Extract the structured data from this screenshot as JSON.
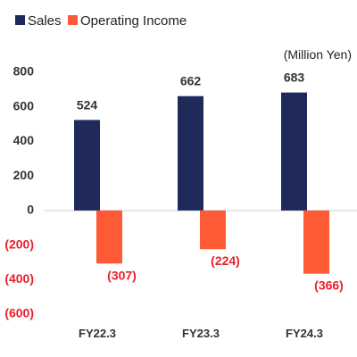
{
  "chart_data": {
    "type": "bar",
    "unit_label": "(Million Yen)",
    "categories": [
      "FY22.3",
      "FY23.3",
      "FY24.3"
    ],
    "series": [
      {
        "name": "Sales",
        "color": "#1f2a5a",
        "values": [
          524,
          662,
          683
        ],
        "labels": [
          "524",
          "662",
          "683"
        ],
        "label_color": "#333333"
      },
      {
        "name": "Operating Income",
        "color": "#ff5a36",
        "values": [
          -307,
          -224,
          -366
        ],
        "labels": [
          "(307)",
          "(224)",
          "(366)"
        ],
        "label_color": "#e8202a"
      }
    ],
    "ylim": [
      -600,
      800
    ],
    "yticks": [
      800,
      600,
      400,
      200,
      0,
      -200,
      -400,
      -600
    ],
    "ytick_labels": [
      "800",
      "600",
      "400",
      "200",
      "0",
      "(200)",
      "(400)",
      "(600)"
    ],
    "positive_tick_color": "#333333",
    "negative_tick_color": "#e8202a",
    "legend_position": "top-left",
    "grid": false
  }
}
